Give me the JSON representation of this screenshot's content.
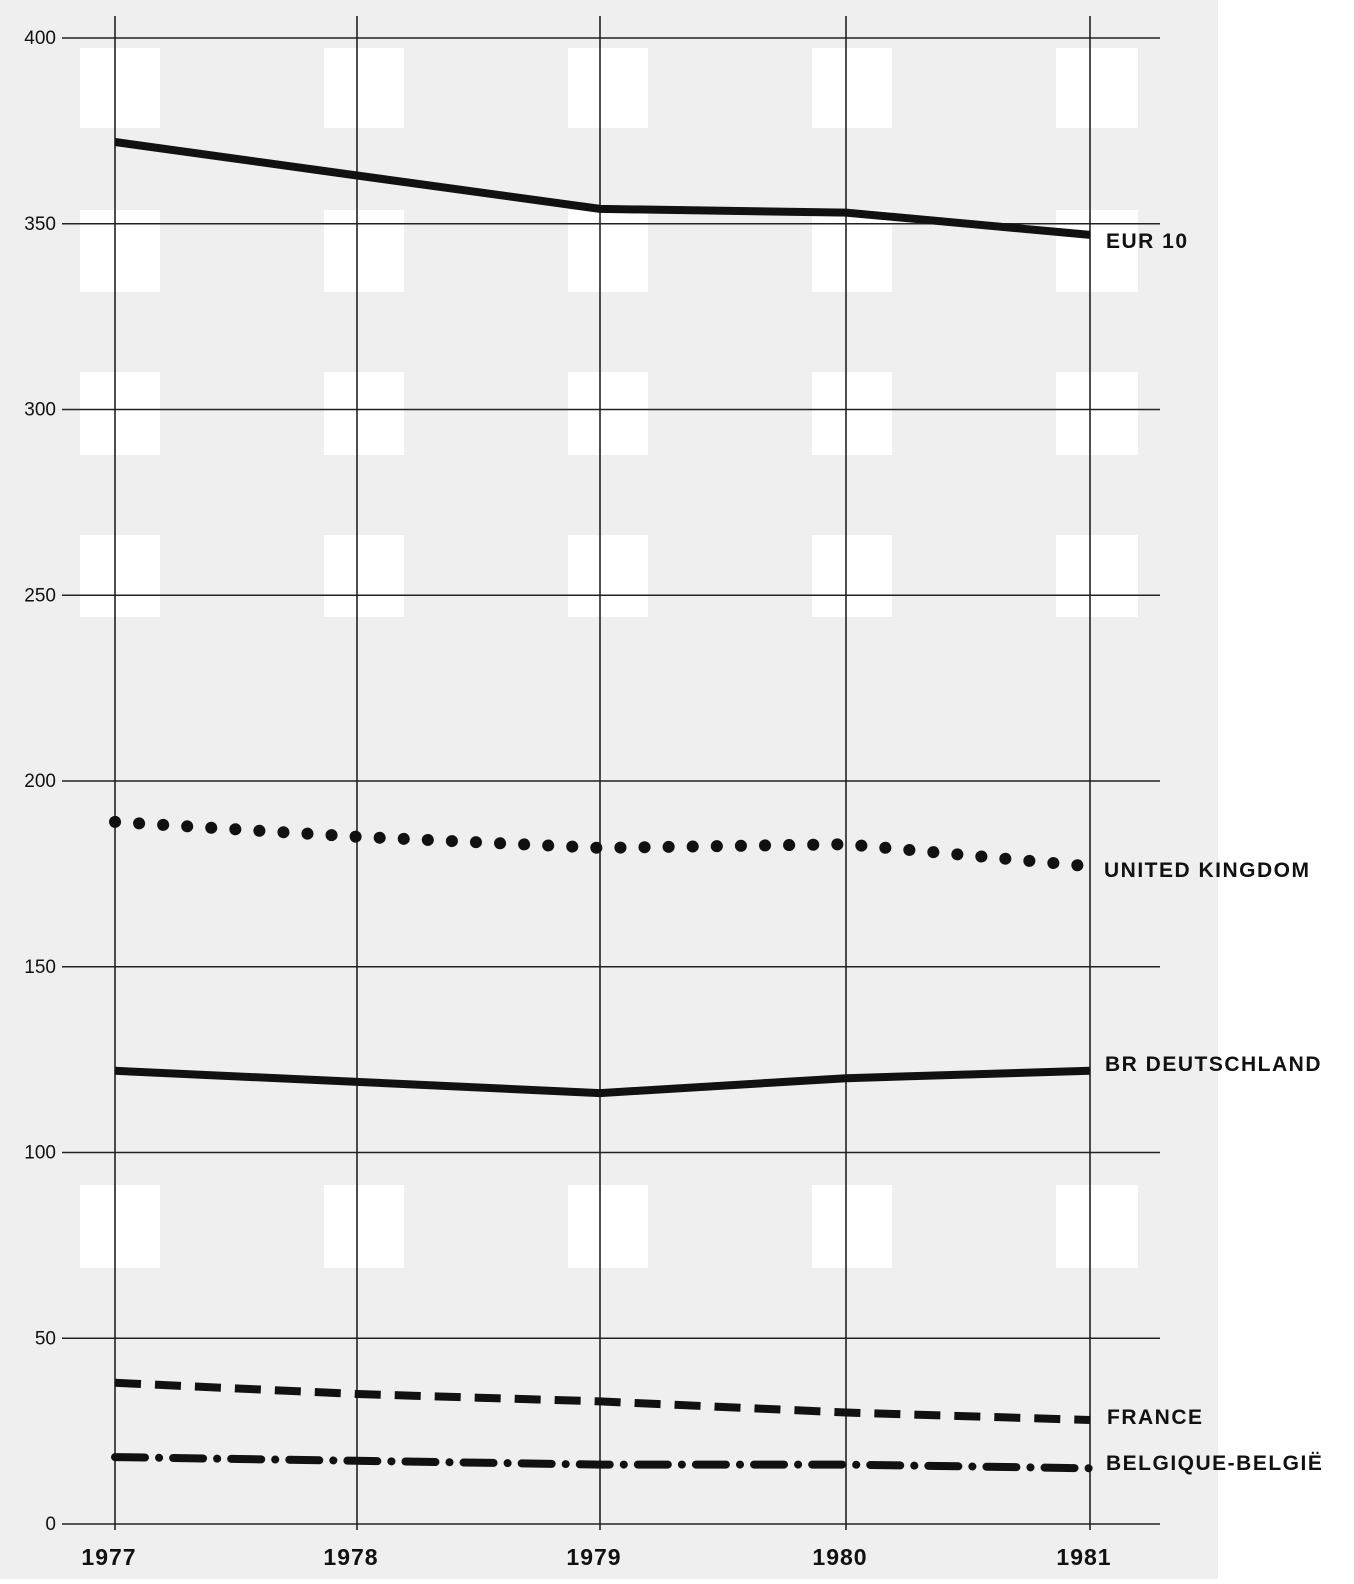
{
  "chart_data": {
    "type": "line",
    "title": "",
    "xlabel": "",
    "ylabel": "",
    "x": [
      "1977",
      "1978",
      "1979",
      "1980",
      "1981"
    ],
    "y_ticks": [
      "0",
      "50",
      "100",
      "150",
      "200",
      "250",
      "300",
      "350",
      "400"
    ],
    "ylim": [
      0,
      400
    ],
    "grid": true,
    "series": [
      {
        "name": "EUR 10",
        "values": [
          372,
          363,
          354,
          353,
          347
        ],
        "style": "solid"
      },
      {
        "name": "UNITED KINGDOM",
        "values": [
          189,
          185,
          182,
          183,
          177
        ],
        "style": "dotted"
      },
      {
        "name": "BR DEUTSCHLAND",
        "values": [
          122,
          119,
          116,
          120,
          122
        ],
        "style": "solid"
      },
      {
        "name": "FRANCE",
        "values": [
          38,
          35,
          33,
          30,
          28
        ],
        "style": "dashed"
      },
      {
        "name": "BELGIQUE-BELGIË",
        "values": [
          18,
          17,
          16,
          16,
          15
        ],
        "style": "dash-dot"
      }
    ],
    "line_color": "#111111",
    "background_pattern_color": "#efefef"
  }
}
